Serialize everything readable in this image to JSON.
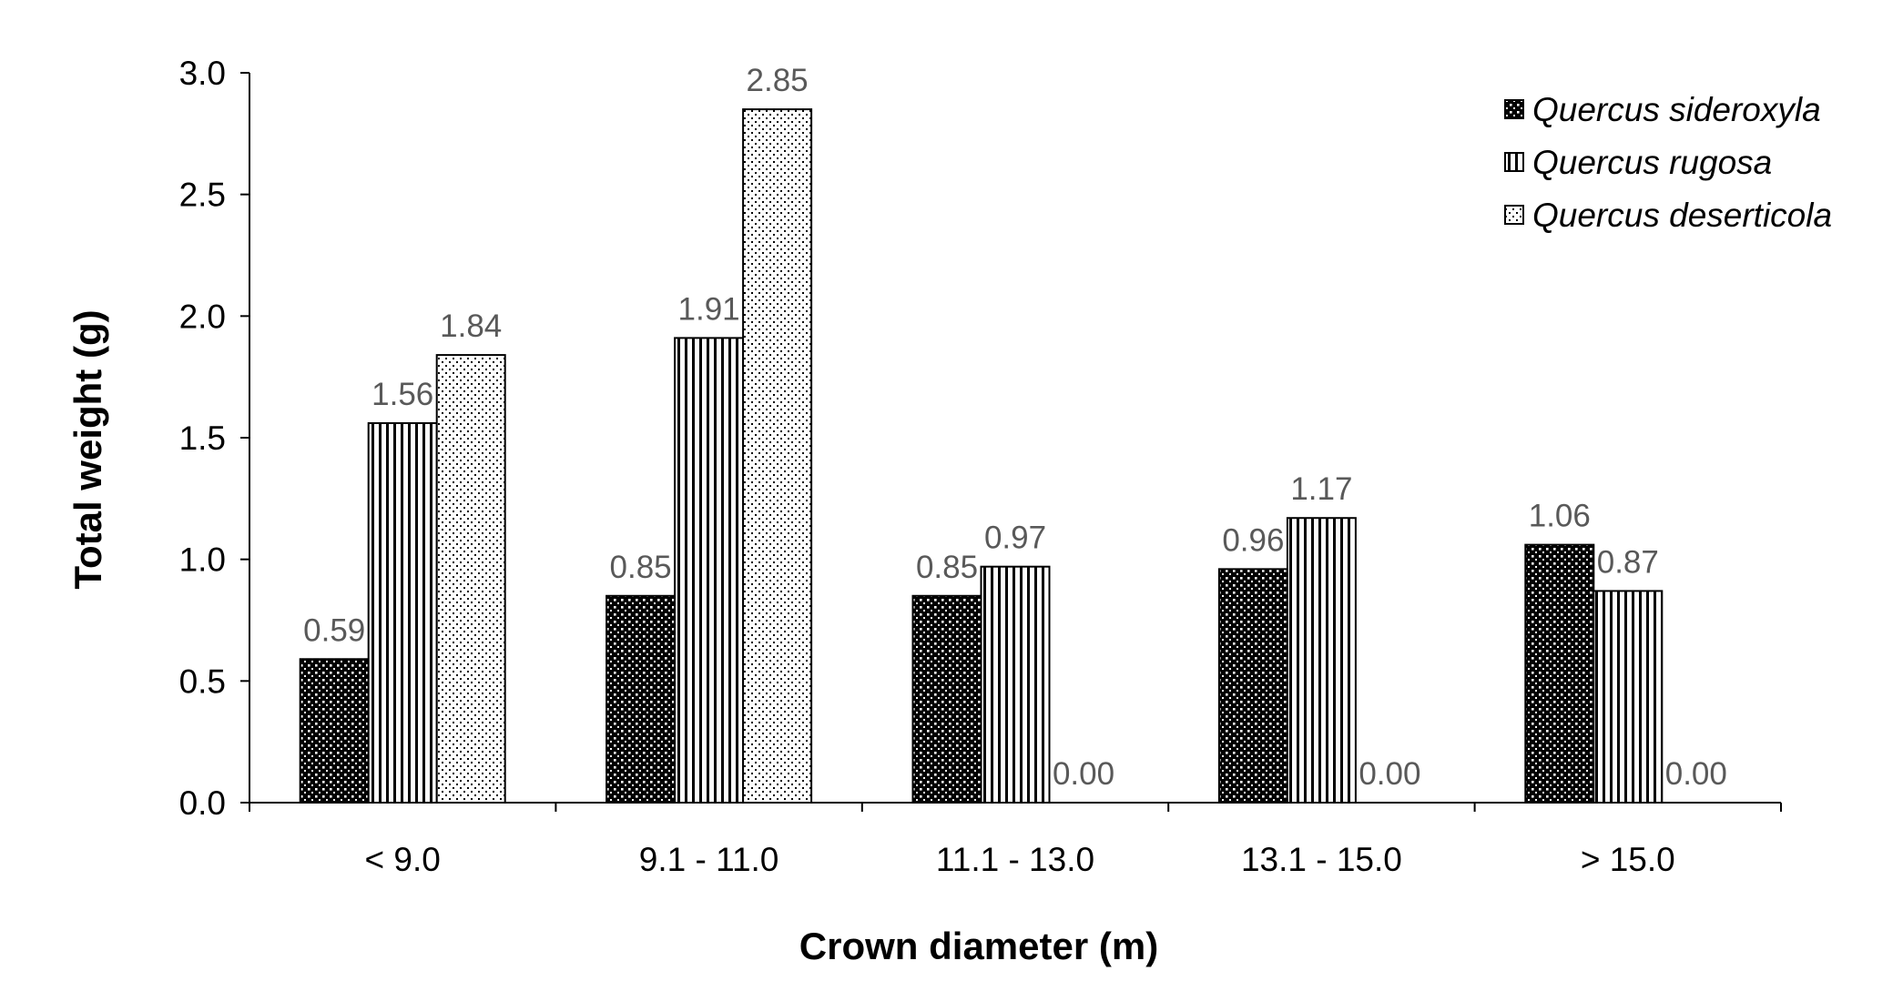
{
  "chart_data": {
    "type": "bar",
    "title": "",
    "xlabel": "Crown diameter (m)",
    "ylabel": "Total weight  (g)",
    "categories": [
      "<  9.0",
      "9.1 - 11.0",
      "11.1 - 13.0",
      "13.1 - 15.0",
      "> 15.0"
    ],
    "series": [
      {
        "name": "Quercus sideroxyla",
        "pattern": "dense-dots-dark",
        "values": [
          0.59,
          0.85,
          0.85,
          0.96,
          1.06
        ],
        "labels": [
          "0.59",
          "0.85",
          "0.85",
          "0.96",
          "1.06"
        ]
      },
      {
        "name": "Quercus rugosa",
        "pattern": "vertical-stripes",
        "values": [
          1.56,
          1.91,
          0.97,
          1.17,
          0.87
        ],
        "labels": [
          "1.56",
          "1.91",
          "0.97",
          "1.17",
          "0.87"
        ]
      },
      {
        "name": "Quercus deserticola",
        "pattern": "sparse-dots-light",
        "values": [
          1.84,
          2.85,
          0.0,
          0.0,
          0.0
        ],
        "labels": [
          "1.84",
          "2.85",
          "0.00",
          "0.00",
          "0.00"
        ]
      }
    ],
    "ylim": [
      0,
      3.0
    ],
    "yticks": [
      0.0,
      0.5,
      1.0,
      1.5,
      2.0,
      2.5,
      3.0
    ],
    "ytick_labels": [
      "0.0",
      "0.5",
      "1.0",
      "1.5",
      "2.0",
      "2.5",
      "3.0"
    ],
    "grid": false,
    "legend_position": "top-right",
    "colors": {
      "axis": "#000000",
      "data_label": "#595959",
      "bar_outline": "#000000"
    }
  }
}
